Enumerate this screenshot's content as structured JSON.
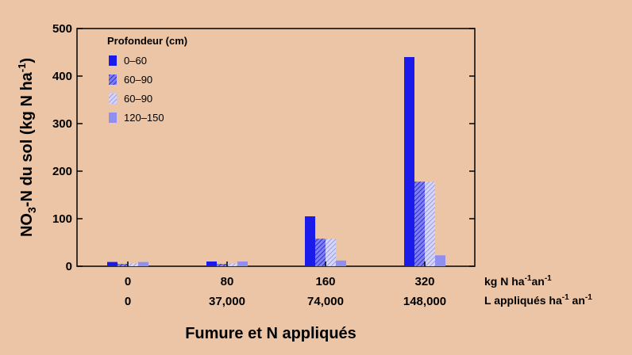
{
  "chart_data": {
    "type": "bar",
    "title": "",
    "ylabel": "NO3-N du sol (kg N ha-1)",
    "ylabel_parts": {
      "pre": "NO",
      "sub": "3",
      "mid": "-N du sol (kg N ha",
      "sup": "-1",
      "post": ")"
    },
    "xlabel": "Fumure et N appliqués",
    "ylim": [
      0,
      500
    ],
    "yticks": [
      0,
      100,
      200,
      300,
      400,
      500
    ],
    "categories": [
      "0",
      "80",
      "160",
      "320"
    ],
    "categories_secondary": [
      "0",
      "37,000",
      "74,000",
      "148,000"
    ],
    "row_units": {
      "primary": {
        "pre": "kg N ha",
        "sup1": "-1",
        "mid": "an",
        "sup2": "-1"
      },
      "secondary": {
        "pre": "L appliqués ha",
        "sup1": "-1",
        "mid": " an",
        "sup2": "-1"
      }
    },
    "legend": {
      "title": "Profondeur (cm)",
      "placement": "top-left"
    },
    "series": [
      {
        "name": "0–60",
        "values": [
          9,
          10,
          105,
          440
        ],
        "color": "#1a1aeb",
        "pattern": "solid"
      },
      {
        "name": "60–90",
        "values": [
          5,
          5,
          58,
          178
        ],
        "color": "#5c5cea",
        "pattern": "hatch-dense"
      },
      {
        "name": "60–90",
        "values": [
          6,
          6,
          58,
          178
        ],
        "color": "#9e9ef0",
        "pattern": "hatch-light"
      },
      {
        "name": "120–150",
        "values": [
          9,
          10,
          12,
          23
        ],
        "color": "#8f8ff2",
        "pattern": "solid"
      }
    ]
  }
}
